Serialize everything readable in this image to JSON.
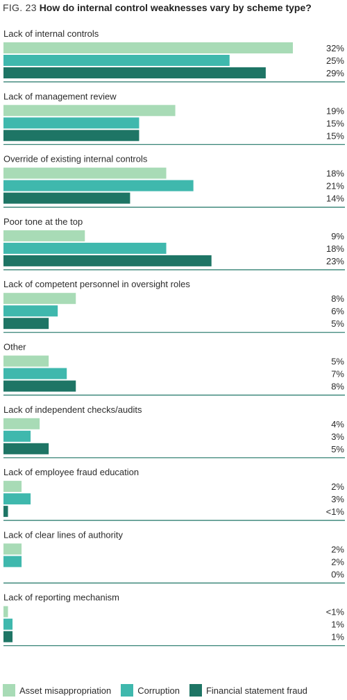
{
  "header": {
    "fig_label": "FIG. 23",
    "title": "How do internal control weaknesses vary by scheme type?"
  },
  "colors": {
    "asset": "#a8dbb6",
    "corruption": "#3fb8ad",
    "financial": "#1e7565",
    "divider": "#1e7565"
  },
  "chart_data": {
    "type": "bar",
    "orientation": "horizontal",
    "title": "How do internal control weaknesses vary by scheme type?",
    "categories": [
      "Lack of internal controls",
      "Lack of management review",
      "Override of existing internal controls",
      "Poor tone at the top",
      "Lack of competent personnel in oversight roles",
      "Other",
      "Lack of independent checks/audits",
      "Lack of employee fraud education",
      "Lack of clear lines of authority",
      "Lack of reporting mechanism"
    ],
    "series": [
      {
        "name": "Asset misappropriation",
        "color": "#a8dbb6",
        "values": [
          32,
          19,
          18,
          9,
          8,
          5,
          4,
          2,
          2,
          0.5
        ],
        "labels": [
          "32%",
          "19%",
          "18%",
          "9%",
          "8%",
          "5%",
          "4%",
          "2%",
          "2%",
          "<1%"
        ]
      },
      {
        "name": "Corruption",
        "color": "#3fb8ad",
        "values": [
          25,
          15,
          21,
          18,
          6,
          7,
          3,
          3,
          2,
          1
        ],
        "labels": [
          "25%",
          "15%",
          "21%",
          "18%",
          "6%",
          "7%",
          "3%",
          "3%",
          "2%",
          "1%"
        ]
      },
      {
        "name": "Financial statement fraud",
        "color": "#1e7565",
        "values": [
          29,
          15,
          14,
          23,
          5,
          8,
          5,
          0.5,
          0,
          1
        ],
        "labels": [
          "29%",
          "15%",
          "14%",
          "23%",
          "5%",
          "8%",
          "5%",
          "<1%",
          "0%",
          "1%"
        ]
      }
    ],
    "xlim": [
      0,
      35
    ],
    "legend_position": "bottom",
    "grid": false
  }
}
